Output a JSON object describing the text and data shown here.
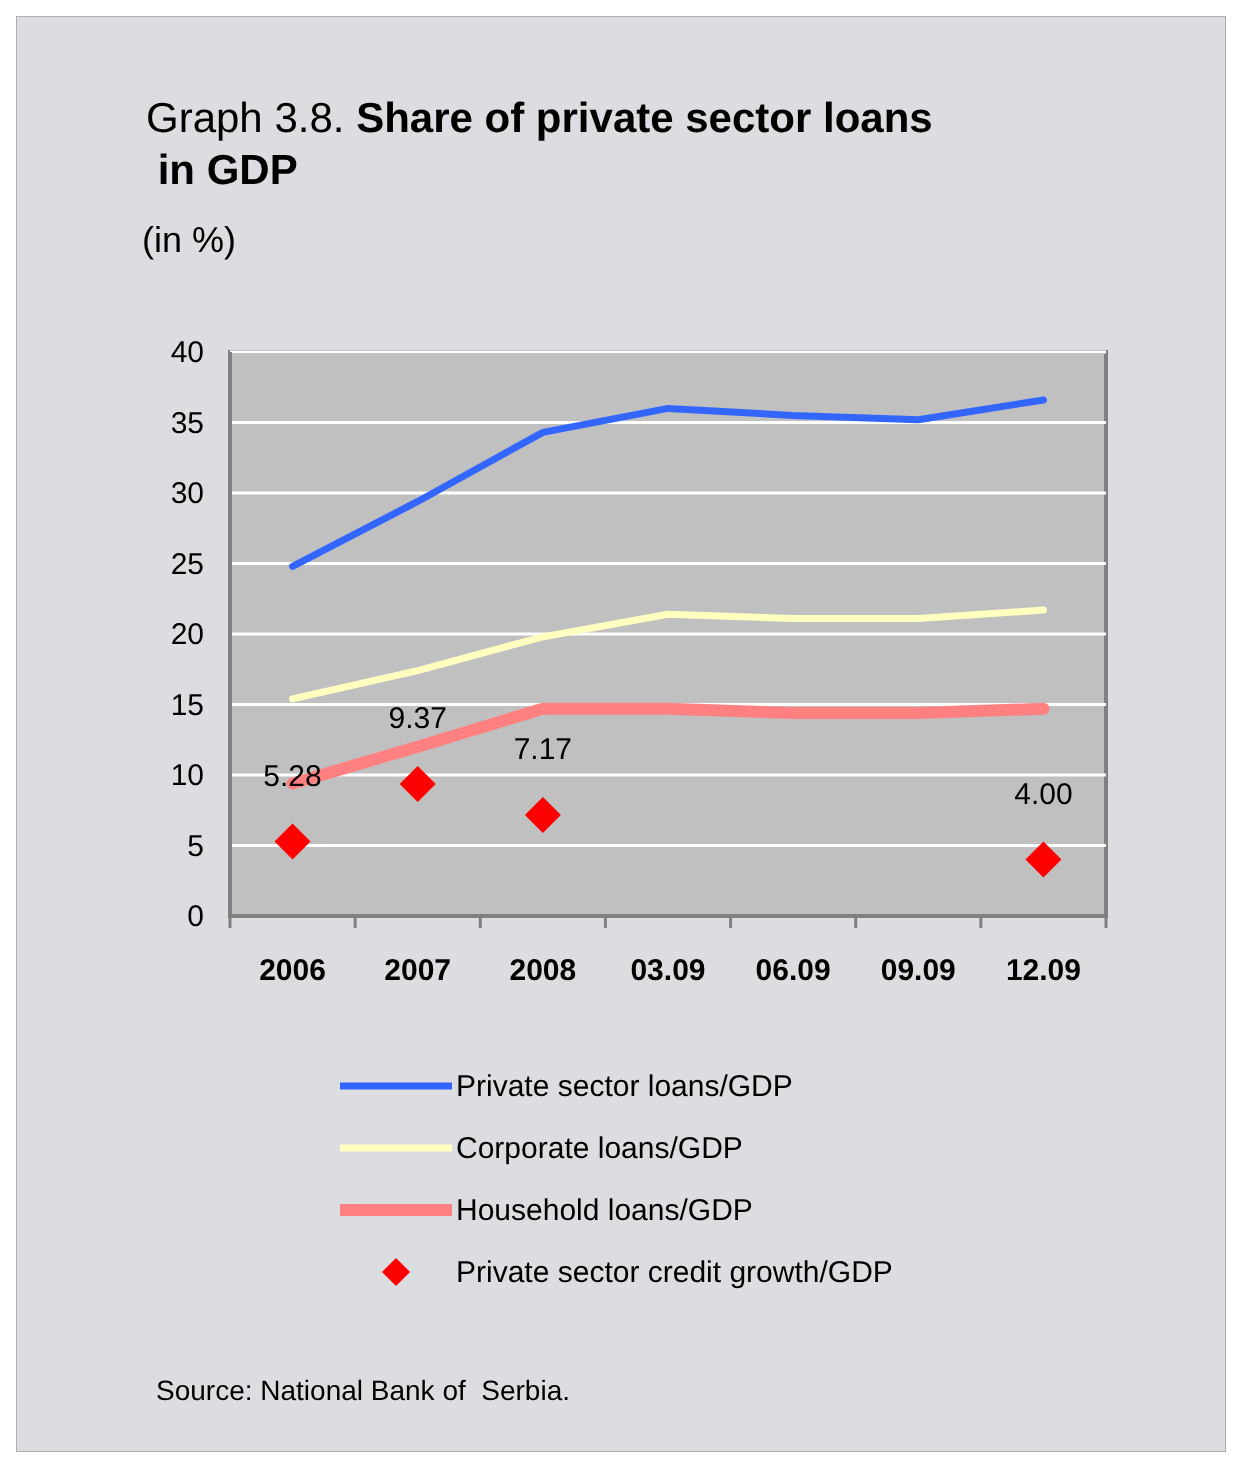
{
  "chart_data": {
    "type": "line",
    "title": "Graph 3.8. Share of private sector loans in GDP",
    "subtitle": "(in %)",
    "categories": [
      "2006",
      "2007",
      "2008",
      "03.09",
      "06.09",
      "09.09",
      "12.09"
    ],
    "series": [
      {
        "name": "Private sector loans/GDP",
        "color": "#3366ff",
        "values": [
          24.8,
          29.4,
          34.3,
          36.0,
          35.5,
          35.2,
          36.6
        ]
      },
      {
        "name": "Corporate loans/GDP",
        "color": "#ffffc0",
        "values": [
          15.4,
          17.4,
          19.8,
          21.4,
          21.1,
          21.1,
          21.7
        ]
      },
      {
        "name": "Household loans/GDP",
        "color": "#ff8080",
        "values": [
          9.4,
          12.0,
          14.7,
          14.7,
          14.4,
          14.4,
          14.7
        ]
      },
      {
        "name": "Private sector credit growth/GDP",
        "type": "scatter",
        "marker": "diamond",
        "color": "#ff0000",
        "values": [
          5.28,
          9.37,
          7.17,
          null,
          null,
          null,
          4.0
        ],
        "value_labels": [
          "5.28",
          "9.37",
          "7.17",
          null,
          null,
          null,
          "4.00"
        ]
      }
    ],
    "ylim": [
      0,
      40
    ],
    "yticks": [
      0,
      5,
      10,
      15,
      20,
      25,
      30,
      35,
      40
    ],
    "grid": "y",
    "legend": "bottom",
    "annotations": [
      "Source: National Bank of  Serbia."
    ]
  }
}
